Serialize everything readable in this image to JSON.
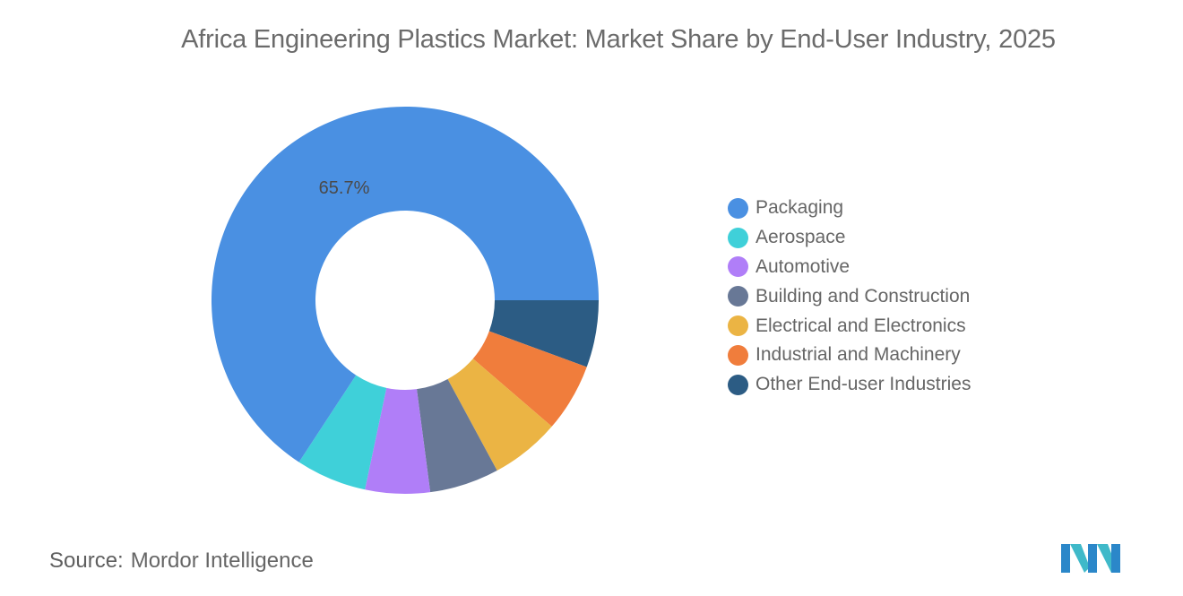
{
  "title": "Africa Engineering Plastics Market: Market Share by End-User Industry, 2025",
  "source": {
    "label": "Source:",
    "value": "Mordor Intelligence"
  },
  "center_label": "65.7%",
  "legend": [
    {
      "label": "Packaging",
      "color": "#4a90e2"
    },
    {
      "label": "Aerospace",
      "color": "#3fd0d9"
    },
    {
      "label": "Automotive",
      "color": "#b07ef8"
    },
    {
      "label": "Building and Construction",
      "color": "#687896"
    },
    {
      "label": "Electrical and Electronics",
      "color": "#ebb444"
    },
    {
      "label": "Industrial and Machinery",
      "color": "#f07d3c"
    },
    {
      "label": "Other End-user Industries",
      "color": "#2c5c84"
    }
  ],
  "chart_data": {
    "type": "pie",
    "subtype": "donut",
    "title": "Africa Engineering Plastics Market: Market Share by End-User Industry, 2025",
    "categories": [
      "Packaging",
      "Aerospace",
      "Automotive",
      "Building and Construction",
      "Electrical and Electronics",
      "Industrial and Machinery",
      "Other End-user Industries"
    ],
    "values": [
      65.7,
      5.9,
      5.4,
      5.8,
      5.8,
      5.7,
      5.6
    ],
    "unit": "%",
    "data_labels": [
      {
        "category": "Packaging",
        "text": "65.7%"
      }
    ],
    "legend_position": "right",
    "colors": [
      "#4a90e2",
      "#3fd0d9",
      "#b07ef8",
      "#687896",
      "#ebb444",
      "#f07d3c",
      "#2c5c84"
    ]
  }
}
